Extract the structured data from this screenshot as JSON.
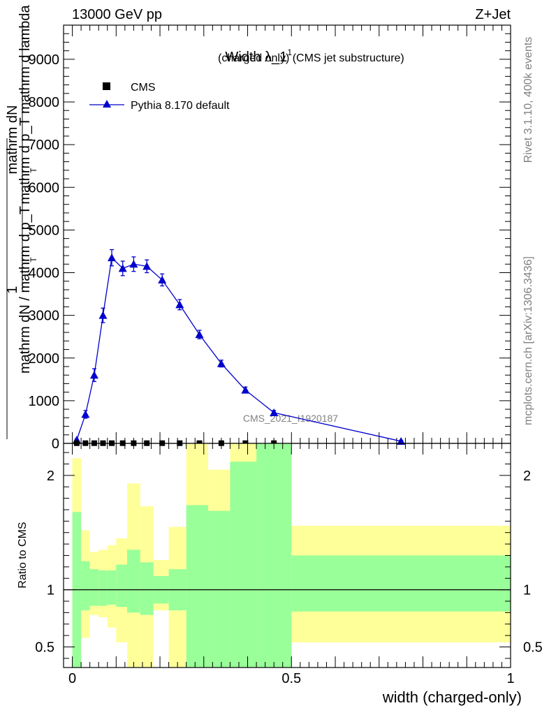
{
  "header": {
    "left": "13000 GeV pp",
    "right": "Z+Jet"
  },
  "side_labels": {
    "rivet": "Rivet 3.1.10,  400k events",
    "mcplots": "mcplots.cern.ch [arXiv:1306.3436]"
  },
  "watermark": "CMS_2021_I1920187",
  "chart_data": [
    {
      "type": "line",
      "title": "Width λ_1",
      "title_sup": "1",
      "title_suffix": "(charged only) (CMS jet substructure)",
      "ylabel": {
        "top_numerator": "mathrm dN",
        "top_denominator": "mathrm d p_T mathrm d lambda",
        "bottom_numerator": "1",
        "bottom_denominator": "mathrm dN / mathrm d p_T",
        "sub_T": "T"
      },
      "xlim": [
        -0.02,
        1.0
      ],
      "ylim": [
        0,
        9800
      ],
      "y_ticks": [
        0,
        1000,
        2000,
        3000,
        4000,
        5000,
        6000,
        7000,
        8000,
        9000
      ],
      "y_tick_labels": [
        "0",
        "1000",
        "2000",
        "3000",
        "4000",
        "5000",
        "6000",
        "7000",
        "8000",
        "9000"
      ],
      "legend_position": "top-left",
      "series": [
        {
          "name": "CMS",
          "marker": "square",
          "color": "#000000",
          "x": [
            0.01,
            0.03,
            0.05,
            0.07,
            0.09,
            0.115,
            0.14,
            0.17,
            0.205,
            0.245,
            0.29,
            0.34,
            0.395,
            0.46
          ],
          "y": [
            5,
            5,
            5,
            5,
            5,
            5,
            5,
            5,
            5,
            5,
            5,
            5,
            5,
            5
          ]
        },
        {
          "name": "Pythia 8.170 default",
          "marker": "triangle",
          "color": "#0000cc",
          "x": [
            0.01,
            0.03,
            0.05,
            0.07,
            0.09,
            0.115,
            0.14,
            0.17,
            0.205,
            0.245,
            0.29,
            0.34,
            0.395,
            0.46,
            0.75
          ],
          "y": [
            80,
            680,
            1600,
            3000,
            4350,
            4100,
            4200,
            4150,
            3830,
            3250,
            2550,
            1870,
            1250,
            720,
            50
          ],
          "yerr": [
            20,
            90,
            150,
            170,
            190,
            170,
            170,
            150,
            140,
            120,
            100,
            80,
            70,
            50,
            20
          ]
        }
      ]
    },
    {
      "type": "area",
      "ylabel": "Ratio to CMS",
      "xlabel": "width (charged-only)",
      "xlim": [
        -0.02,
        1.0
      ],
      "ylim": [
        0.32,
        2.28
      ],
      "y_ticks": [
        0.5,
        1,
        2
      ],
      "y_tick_labels": [
        "0.5",
        "1",
        "2"
      ],
      "x_ticks": [
        0,
        0.5,
        1
      ],
      "x_tick_labels": [
        "0",
        "0.5",
        "1"
      ],
      "reference": 1,
      "band_colors": {
        "inner": "#99ff99",
        "outer": "#ffff99"
      },
      "bins": [
        {
          "x0": 0.0,
          "x1": 0.02,
          "in_lo": 0.32,
          "in_hi": 1.68,
          "out_lo": 0.32,
          "out_hi": 2.15
        },
        {
          "x0": 0.02,
          "x1": 0.04,
          "in_lo": 0.82,
          "in_hi": 1.25,
          "out_lo": 0.58,
          "out_hi": 1.52
        },
        {
          "x0": 0.04,
          "x1": 0.06,
          "in_lo": 0.86,
          "in_hi": 1.18,
          "out_lo": 0.78,
          "out_hi": 1.33
        },
        {
          "x0": 0.06,
          "x1": 0.08,
          "in_lo": 0.86,
          "in_hi": 1.17,
          "out_lo": 0.76,
          "out_hi": 1.35
        },
        {
          "x0": 0.08,
          "x1": 0.1,
          "in_lo": 0.87,
          "in_hi": 1.17,
          "out_lo": 0.67,
          "out_hi": 1.39
        },
        {
          "x0": 0.1,
          "x1": 0.125,
          "in_lo": 0.85,
          "in_hi": 1.22,
          "out_lo": 0.54,
          "out_hi": 1.45
        },
        {
          "x0": 0.125,
          "x1": 0.155,
          "in_lo": 0.8,
          "in_hi": 1.35,
          "out_lo": 0.32,
          "out_hi": 1.93
        },
        {
          "x0": 0.155,
          "x1": 0.185,
          "in_lo": 0.78,
          "in_hi": 1.24,
          "out_lo": 0.32,
          "out_hi": 1.73
        },
        {
          "x0": 0.185,
          "x1": 0.22,
          "in_lo": 0.88,
          "in_hi": 1.12,
          "out_lo": 0.82,
          "out_hi": 1.26
        },
        {
          "x0": 0.22,
          "x1": 0.26,
          "in_lo": 0.82,
          "in_hi": 1.18,
          "out_lo": 0.32,
          "out_hi": 1.55
        },
        {
          "x0": 0.26,
          "x1": 0.31,
          "in_lo": 0.32,
          "in_hi": 1.74,
          "out_lo": 0.32,
          "out_hi": 2.28
        },
        {
          "x0": 0.31,
          "x1": 0.36,
          "in_lo": 0.32,
          "in_hi": 1.69,
          "out_lo": 0.4,
          "out_hi": 2.05
        },
        {
          "x0": 0.36,
          "x1": 0.42,
          "in_lo": 0.32,
          "in_hi": 2.12,
          "out_lo": 0.32,
          "out_hi": 2.28
        },
        {
          "x0": 0.42,
          "x1": 0.5,
          "in_lo": 0.32,
          "in_hi": 2.28,
          "out_lo": 0.32,
          "out_hi": 2.28
        },
        {
          "x0": 0.5,
          "x1": 1.0,
          "in_lo": 0.81,
          "in_hi": 1.3,
          "out_lo": 0.54,
          "out_hi": 1.56
        }
      ]
    }
  ]
}
